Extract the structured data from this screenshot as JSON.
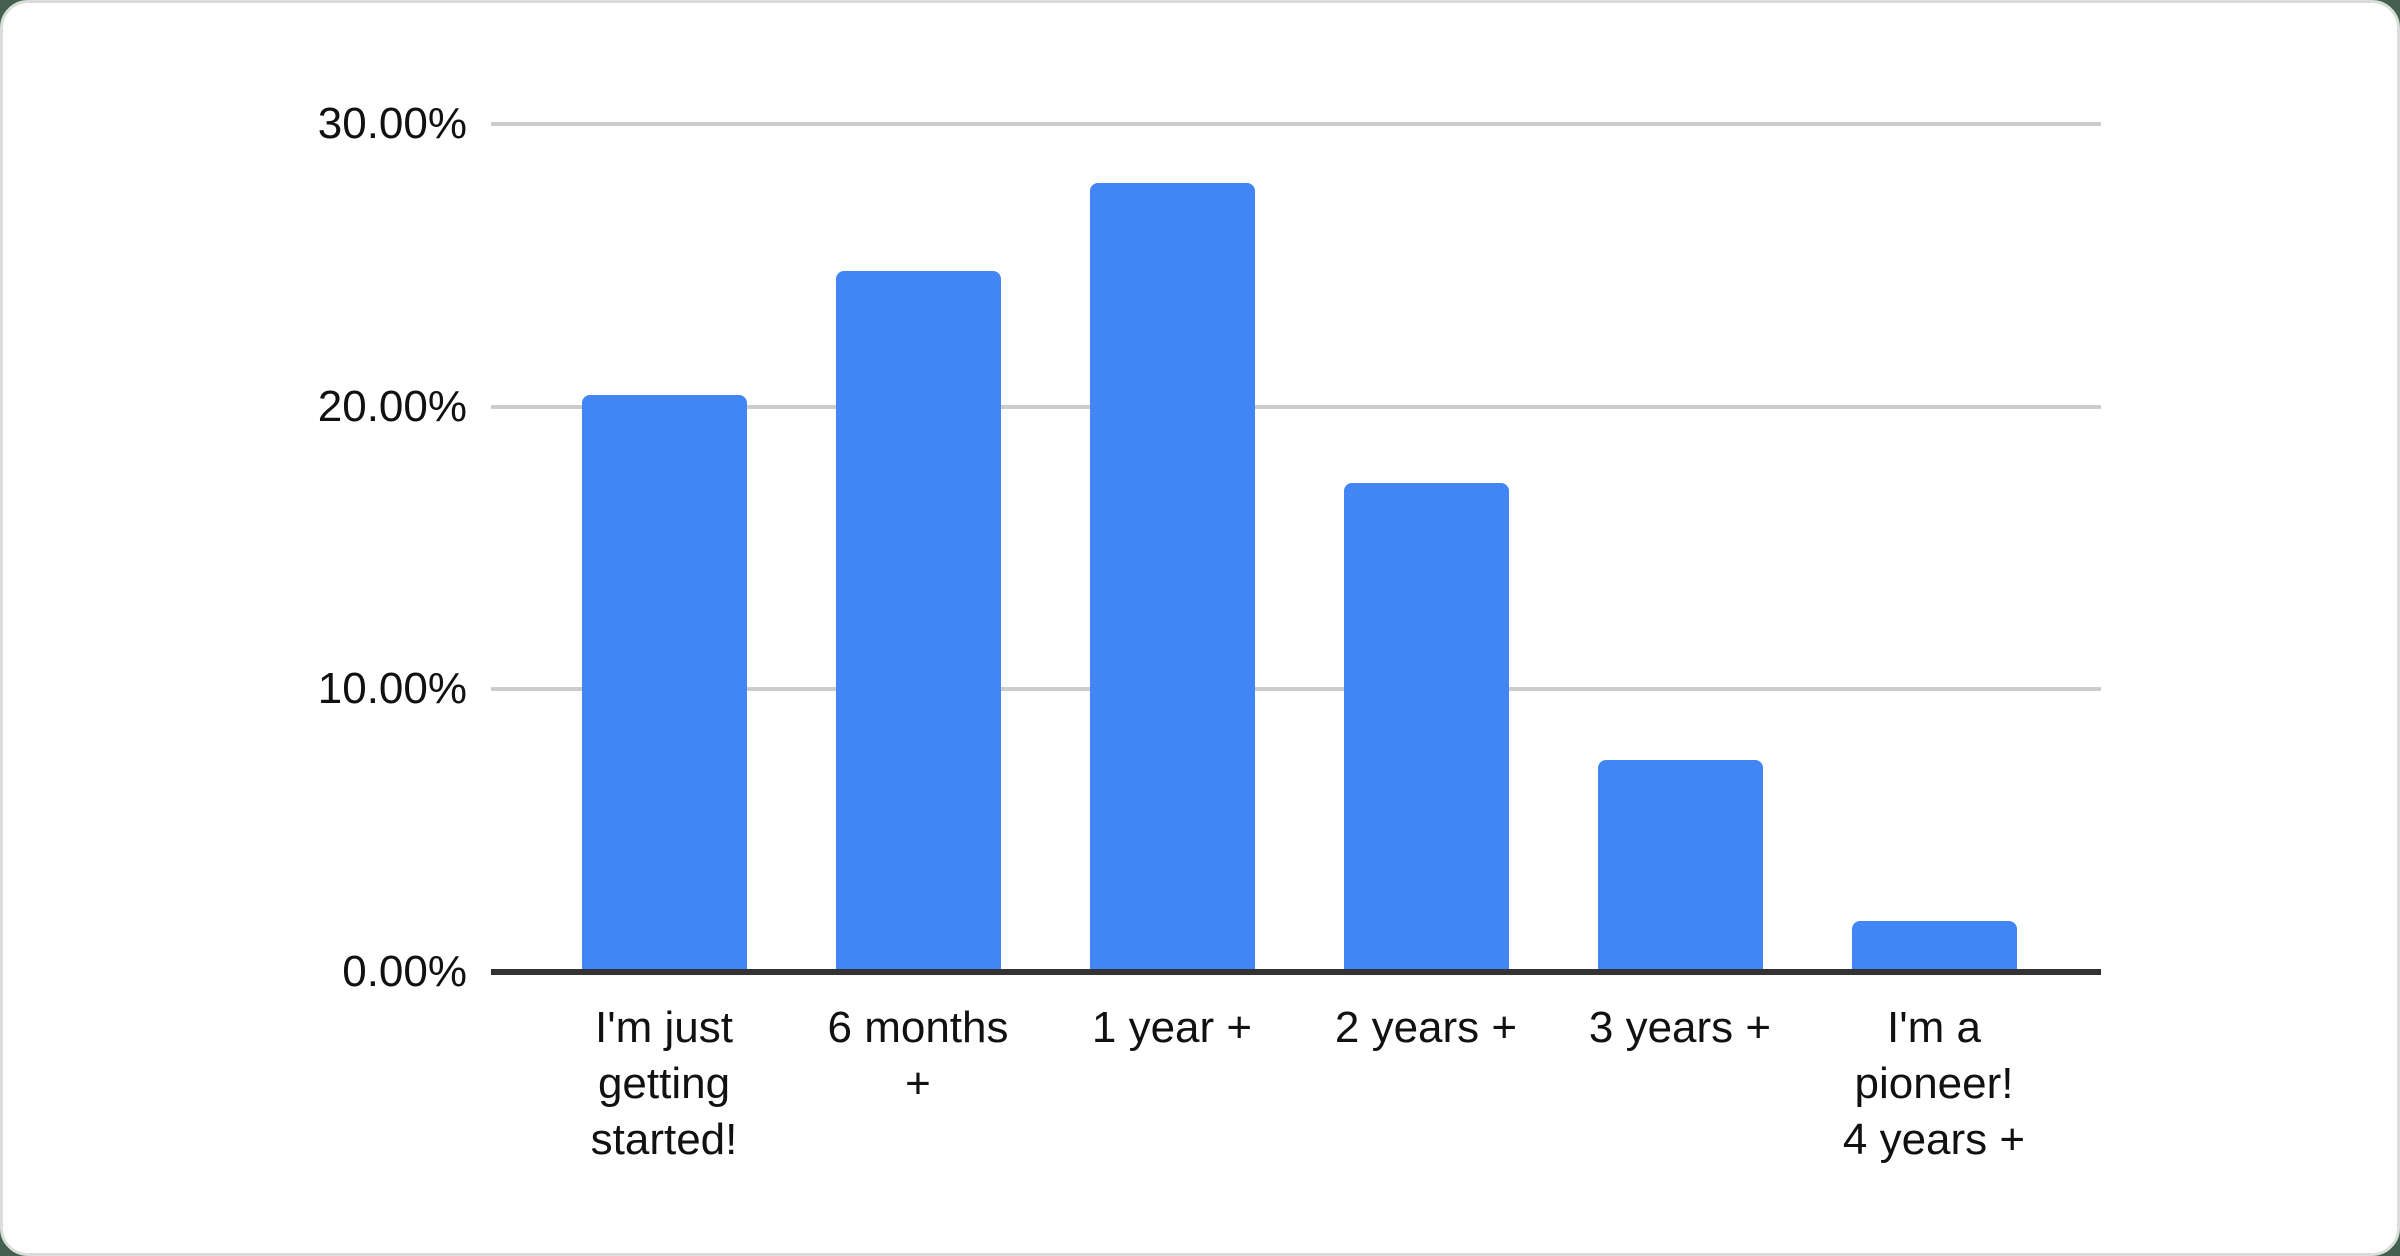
{
  "colors": {
    "bar": "#4285f4",
    "gridline": "#cccccc",
    "axis_line": "#333333",
    "label_text": "#111111",
    "card_background": "#ffffff",
    "card_border": "#d9ded9",
    "page_background": "#466050"
  },
  "chart_data": {
    "type": "bar",
    "title": "",
    "xlabel": "",
    "ylabel": "",
    "legend_position": "none",
    "grid": true,
    "categories": [
      "I'm just getting started!",
      "6 months +",
      "1 year +",
      "2 years +",
      "3 years +",
      "I'm a pioneer! 4 years +"
    ],
    "category_label_lines": [
      [
        "I'm just",
        "getting",
        "started!"
      ],
      [
        "6 months",
        "+"
      ],
      [
        "1 year +"
      ],
      [
        "2 years +"
      ],
      [
        "3 years +"
      ],
      [
        "I'm a",
        "pioneer!",
        "4 years +"
      ]
    ],
    "values": [
      20.4,
      24.8,
      27.9,
      17.3,
      7.5,
      1.8
    ],
    "value_unit": "percent",
    "ylim": [
      0,
      30
    ],
    "y_axis": {
      "min": 0,
      "max": 30,
      "ticks": [
        {
          "label": "30.00%",
          "value": 30
        },
        {
          "label": "20.00%",
          "value": 20
        },
        {
          "label": "10.00%",
          "value": 10
        },
        {
          "label": "0.00%",
          "value": 0
        }
      ]
    }
  }
}
